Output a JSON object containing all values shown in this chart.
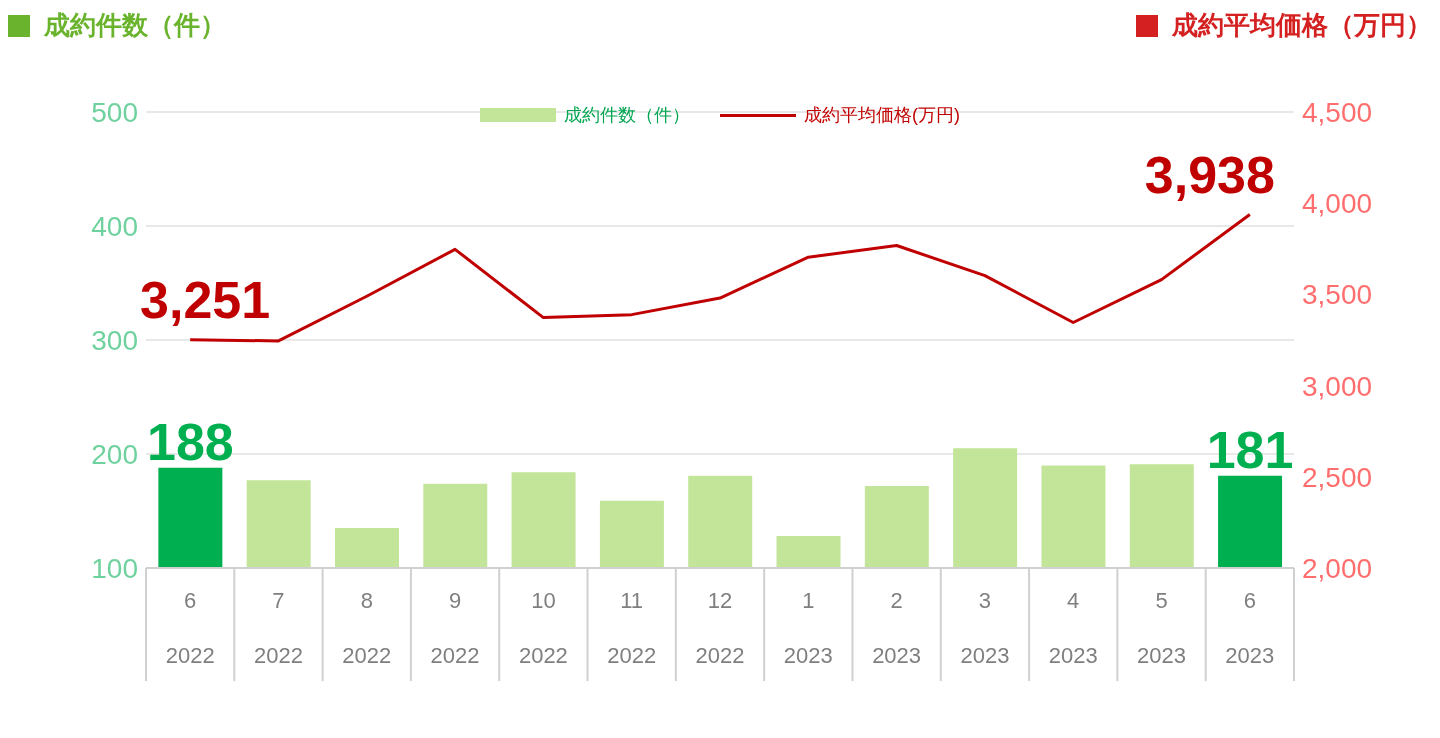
{
  "chart_data": {
    "type": "bar",
    "ylabel": "成約件数（件）",
    "y2label": "成約平均価格（万円）",
    "categories": [
      "6\n2022",
      "7\n2022",
      "8\n2022",
      "9\n2022",
      "10\n2022",
      "11\n2022",
      "12\n2022",
      "1\n2023",
      "2\n2023",
      "3\n2023",
      "4\n2023",
      "5\n2023",
      "6\n2023"
    ],
    "series": [
      {
        "name": "成約件数（件）",
        "color": "#c3e59a",
        "colors": [
          "#00b050",
          "#c3e59a",
          "#c3e59a",
          "#c3e59a",
          "#c3e59a",
          "#c3e59a",
          "#c3e59a",
          "#c3e59a",
          "#c3e59a",
          "#c3e59a",
          "#c3e59a",
          "#c3e59a",
          "#00b050"
        ],
        "values": [
          188,
          177,
          135,
          174,
          184,
          159,
          181,
          128,
          172,
          205,
          190,
          191,
          181
        ],
        "value_labels": [
          "188",
          null,
          null,
          null,
          null,
          null,
          null,
          null,
          null,
          null,
          null,
          null,
          "181"
        ]
      },
      {
        "name": "成約平均価格(万円)",
        "type": "line",
        "axis": "y2",
        "color": "#c00000",
        "values": [
          3251,
          3245,
          3490,
          3747,
          3373,
          3389,
          3480,
          3704,
          3768,
          3603,
          3346,
          3581,
          3938
        ],
        "value_labels": [
          "3,251",
          null,
          null,
          null,
          null,
          null,
          null,
          null,
          null,
          null,
          null,
          null,
          "3,938"
        ]
      }
    ],
    "ylim": [
      100,
      500
    ],
    "yticks": [
      100,
      200,
      300,
      400,
      500
    ],
    "y2lim": [
      2000,
      4500
    ],
    "y2ticks": [
      {
        "value": 2000,
        "label": "2,000"
      },
      {
        "value": 2500,
        "label": "2,500"
      },
      {
        "value": 3000,
        "label": "3,000"
      },
      {
        "value": 3500,
        "label": "3,500"
      },
      {
        "value": 4000,
        "label": "4,000"
      },
      {
        "value": 4500,
        "label": "4,500"
      }
    ],
    "grid": "y",
    "legend": "top"
  }
}
